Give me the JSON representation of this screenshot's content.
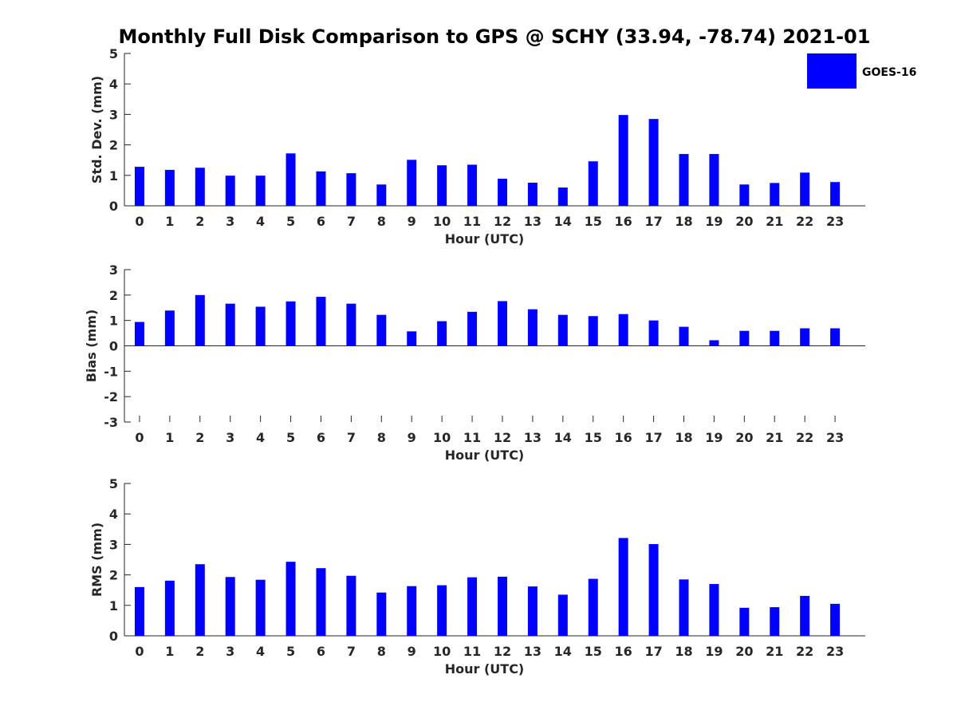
{
  "chart_data": [
    {
      "type": "bar",
      "title": "Monthly Full Disk Comparison to GPS @ SCHY (33.94, -78.74) 2021-01",
      "xlabel": "Hour (UTC)",
      "ylabel": "Std. Dev. (mm)",
      "ylim": [
        0,
        5
      ],
      "yticks": [
        0,
        1,
        2,
        3,
        4,
        5
      ],
      "categories": [
        "0",
        "1",
        "2",
        "3",
        "4",
        "5",
        "6",
        "7",
        "8",
        "9",
        "10",
        "11",
        "12",
        "13",
        "14",
        "15",
        "16",
        "17",
        "18",
        "19",
        "20",
        "21",
        "22",
        "23"
      ],
      "series": [
        {
          "name": "GOES-16",
          "color": "#0000ff",
          "values": [
            1.28,
            1.18,
            1.25,
            0.99,
            0.99,
            1.72,
            1.13,
            1.07,
            0.7,
            1.51,
            1.33,
            1.35,
            0.89,
            0.76,
            0.6,
            1.46,
            2.98,
            2.85,
            1.7,
            1.7,
            0.7,
            0.75,
            1.09,
            0.78
          ]
        }
      ],
      "legend": {
        "label": "GOES-16",
        "color": "#0000ff",
        "position": "top-right"
      }
    },
    {
      "type": "bar",
      "xlabel": "Hour (UTC)",
      "ylabel": "Bias (mm)",
      "ylim": [
        -3,
        3
      ],
      "yticks": [
        -3,
        -2,
        -1,
        0,
        1,
        2,
        3
      ],
      "categories": [
        "0",
        "1",
        "2",
        "3",
        "4",
        "5",
        "6",
        "7",
        "8",
        "9",
        "10",
        "11",
        "12",
        "13",
        "14",
        "15",
        "16",
        "17",
        "18",
        "19",
        "20",
        "21",
        "22",
        "23"
      ],
      "series": [
        {
          "name": "GOES-16",
          "color": "#0000ff",
          "values": [
            0.94,
            1.39,
            2.0,
            1.66,
            1.54,
            1.75,
            1.93,
            1.66,
            1.22,
            0.57,
            0.97,
            1.34,
            1.76,
            1.44,
            1.22,
            1.17,
            1.25,
            1.0,
            0.75,
            0.22,
            0.59,
            0.59,
            0.69,
            0.69
          ]
        }
      ]
    },
    {
      "type": "bar",
      "xlabel": "Hour (UTC)",
      "ylabel": "RMS (mm)",
      "ylim": [
        0,
        5
      ],
      "yticks": [
        0,
        1,
        2,
        3,
        4,
        5
      ],
      "categories": [
        "0",
        "1",
        "2",
        "3",
        "4",
        "5",
        "6",
        "7",
        "8",
        "9",
        "10",
        "11",
        "12",
        "13",
        "14",
        "15",
        "16",
        "17",
        "18",
        "19",
        "20",
        "21",
        "22",
        "23"
      ],
      "series": [
        {
          "name": "GOES-16",
          "color": "#0000ff",
          "values": [
            1.6,
            1.81,
            2.35,
            1.93,
            1.84,
            2.43,
            2.22,
            1.97,
            1.42,
            1.63,
            1.66,
            1.92,
            1.94,
            1.62,
            1.35,
            1.87,
            3.21,
            3.01,
            1.85,
            1.7,
            0.92,
            0.94,
            1.31,
            1.05
          ]
        }
      ]
    }
  ]
}
